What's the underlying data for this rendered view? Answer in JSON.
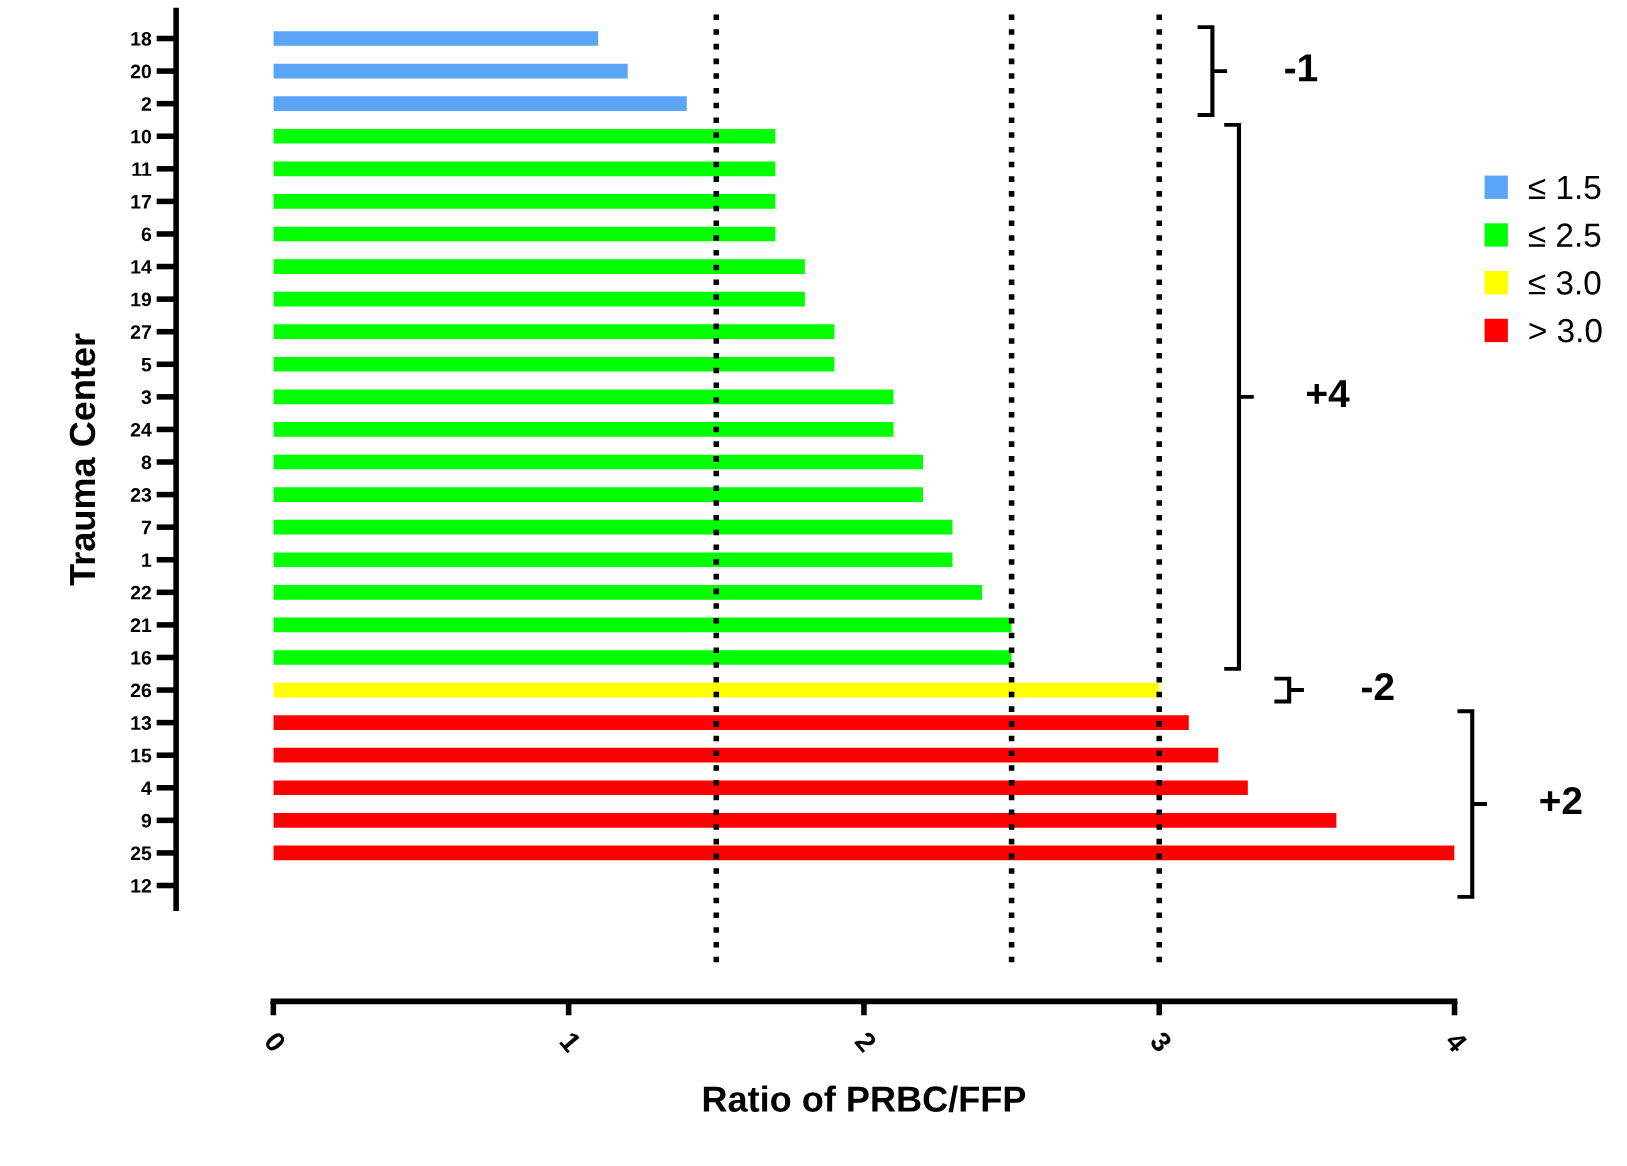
{
  "chart_data": {
    "type": "bar",
    "orientation": "horizontal",
    "xlabel": "Ratio of PRBC/FFP",
    "ylabel": "Trauma Center",
    "categories": [
      "18",
      "20",
      "2",
      "10",
      "11",
      "17",
      "6",
      "14",
      "19",
      "27",
      "5",
      "3",
      "24",
      "8",
      "23",
      "7",
      "1",
      "22",
      "21",
      "16",
      "26",
      "13",
      "15",
      "4",
      "9",
      "25",
      "12"
    ],
    "series": [
      {
        "name": "≤ 1.5",
        "color": "#5aa5f5",
        "values": [
          1.1,
          1.2,
          1.4,
          null,
          null,
          null,
          null,
          null,
          null,
          null,
          null,
          null,
          null,
          null,
          null,
          null,
          null,
          null,
          null,
          null,
          null,
          null,
          null,
          null,
          null,
          null,
          null
        ]
      },
      {
        "name": "≤ 2.5",
        "color": "#00ff00",
        "values": [
          null,
          null,
          null,
          1.7,
          1.7,
          1.7,
          1.7,
          1.8,
          1.8,
          1.9,
          1.9,
          2.1,
          2.1,
          2.2,
          2.2,
          2.3,
          2.3,
          2.4,
          2.5,
          2.5,
          null,
          null,
          null,
          null,
          null,
          null,
          null
        ]
      },
      {
        "name": "≤ 3.0",
        "color": "#ffff00",
        "values": [
          null,
          null,
          null,
          null,
          null,
          null,
          null,
          null,
          null,
          null,
          null,
          null,
          null,
          null,
          null,
          null,
          null,
          null,
          null,
          null,
          3.0,
          null,
          null,
          null,
          null,
          null,
          null
        ]
      },
      {
        "name": "> 3.0",
        "color": "#ff0000",
        "values": [
          null,
          null,
          null,
          null,
          null,
          null,
          null,
          null,
          null,
          null,
          null,
          null,
          null,
          null,
          null,
          null,
          null,
          null,
          null,
          null,
          null,
          3.1,
          3.2,
          3.3,
          3.6,
          4.0,
          null
        ]
      }
    ],
    "xlim": [
      0,
      4
    ],
    "xticks": [
      0,
      1,
      2,
      3,
      4
    ],
    "ref_lines": [
      {
        "axis": "x",
        "value": 1.5,
        "line_style": "dotted",
        "color": "#000000"
      },
      {
        "axis": "x",
        "value": 2.5,
        "line_style": "dotted",
        "color": "#000000"
      },
      {
        "axis": "x",
        "value": 3.0,
        "line_style": "dotted",
        "color": "#000000"
      }
    ],
    "annotations": [
      "-1",
      "+4",
      "-2",
      "+2"
    ],
    "legend": "right",
    "grid": false
  }
}
